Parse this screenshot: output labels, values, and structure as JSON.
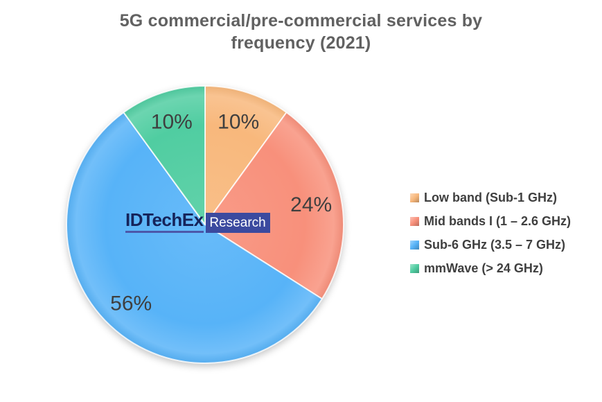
{
  "chart_data": {
    "type": "pie",
    "title": "5G commercial/pre-commercial services by frequency (2021)",
    "title_lines": [
      "5G commercial/pre-commercial services by",
      "frequency (2021)"
    ],
    "direction": "clockwise",
    "start_angle_deg": 0,
    "legend_position": "right",
    "slices": [
      {
        "label": "Low band (Sub-1 GHz)",
        "value": 10,
        "pct_label": "10%",
        "color": "#F8B87C"
      },
      {
        "label": "Mid bands I (1 – 2.6 GHz)",
        "value": 24,
        "pct_label": "24%",
        "color": "#F8907B"
      },
      {
        "label": "Sub-6 GHz (3.5 – 7 GHz)",
        "value": 56,
        "pct_label": "56%",
        "color": "#57B3F8"
      },
      {
        "label": "mmWave (> 24 GHz)",
        "value": 10,
        "pct_label": "10%",
        "color": "#50CDA1"
      }
    ]
  },
  "logo": {
    "brand": "IDTechEx",
    "sub": "Research"
  },
  "colors": {
    "title_text": "#616161",
    "label_text": "#3F3F3F",
    "logo_navy": "#15235A",
    "logo_box": "#3B4A9F",
    "logo_underline": "#4C57A9",
    "slice_stroke": "rgba(255,255,255,0.8)"
  }
}
